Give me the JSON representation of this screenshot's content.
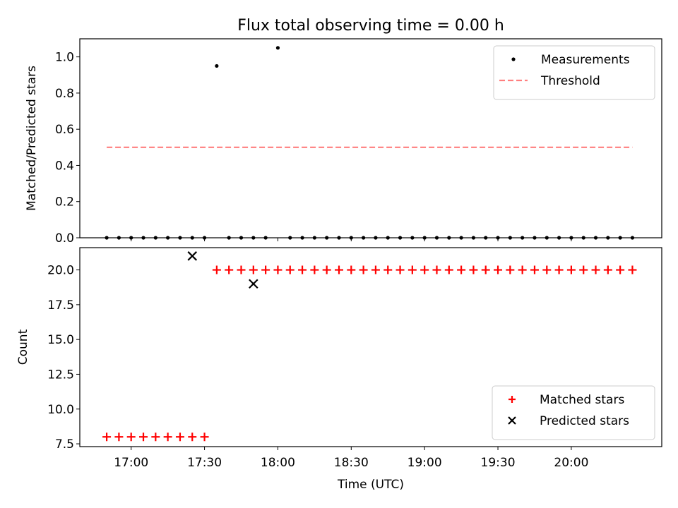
{
  "figure": {
    "title": "Flux total observing time = 0.00 h",
    "xlabel": "Time (UTC)"
  },
  "chart_data": [
    {
      "type": "scatter",
      "ylabel": "Matched/Predicted stars",
      "ylim": [
        0,
        1.1
      ],
      "yticks": [
        0.0,
        0.2,
        0.4,
        0.6,
        0.8,
        1.0
      ],
      "yticks_text": [
        "0.0",
        "0.2",
        "0.4",
        "0.6",
        "0.8",
        "1.0"
      ],
      "xlim": [
        "16:39",
        "20:37"
      ],
      "xticks": [
        "17:00",
        "17:30",
        "18:00",
        "18:30",
        "19:00",
        "19:30",
        "20:00"
      ],
      "legend": {
        "position": "upper-right",
        "entries": [
          "Measurements",
          "Threshold"
        ]
      },
      "series": [
        {
          "name": "Measurements",
          "marker": "dot",
          "color": "#000000",
          "x": [
            "16:50",
            "16:55",
            "17:00",
            "17:05",
            "17:10",
            "17:15",
            "17:20",
            "17:25",
            "17:30",
            "17:35",
            "17:40",
            "17:45",
            "17:50",
            "17:55",
            "18:00",
            "18:05",
            "18:10",
            "18:15",
            "18:20",
            "18:25",
            "18:30",
            "18:35",
            "18:40",
            "18:45",
            "18:50",
            "18:55",
            "19:00",
            "19:05",
            "19:10",
            "19:15",
            "19:20",
            "19:25",
            "19:30",
            "19:35",
            "19:40",
            "19:45",
            "19:50",
            "19:55",
            "20:00",
            "20:05",
            "20:10",
            "20:15",
            "20:20",
            "20:25"
          ],
          "y": [
            0,
            0,
            0,
            0,
            0,
            0,
            0,
            0,
            0,
            0.95,
            0,
            0,
            0,
            0,
            1.05,
            0,
            0,
            0,
            0,
            0,
            0,
            0,
            0,
            0,
            0,
            0,
            0,
            0,
            0,
            0,
            0,
            0,
            0,
            0,
            0,
            0,
            0,
            0,
            0,
            0,
            0,
            0,
            0,
            0
          ]
        },
        {
          "name": "Threshold",
          "style": "dashed",
          "color": "#ff7f7f",
          "x": [
            "16:50",
            "20:25"
          ],
          "y": [
            0.5,
            0.5
          ]
        }
      ]
    },
    {
      "type": "scatter",
      "ylabel": "Count",
      "ylim": [
        7.3,
        21.6
      ],
      "yticks": [
        7.5,
        10.0,
        12.5,
        15.0,
        17.5,
        20.0
      ],
      "yticks_text": [
        "7.5",
        "10.0",
        "12.5",
        "15.0",
        "17.5",
        "20.0"
      ],
      "xlim": [
        "16:39",
        "20:37"
      ],
      "xticks": [
        "17:00",
        "17:30",
        "18:00",
        "18:30",
        "19:00",
        "19:30",
        "20:00"
      ],
      "legend": {
        "position": "lower-right",
        "entries": [
          "Matched stars",
          "Predicted stars"
        ]
      },
      "series": [
        {
          "name": "Matched stars",
          "marker": "plus",
          "color": "#ff0000",
          "x": [
            "16:50",
            "16:55",
            "17:00",
            "17:05",
            "17:10",
            "17:15",
            "17:20",
            "17:25",
            "17:30",
            "17:35",
            "17:40",
            "17:45",
            "17:50",
            "17:55",
            "18:00",
            "18:05",
            "18:10",
            "18:15",
            "18:20",
            "18:25",
            "18:30",
            "18:35",
            "18:40",
            "18:45",
            "18:50",
            "18:55",
            "19:00",
            "19:05",
            "19:10",
            "19:15",
            "19:20",
            "19:25",
            "19:30",
            "19:35",
            "19:40",
            "19:45",
            "19:50",
            "19:55",
            "20:00",
            "20:05",
            "20:10",
            "20:15",
            "20:20",
            "20:25"
          ],
          "y": [
            8,
            8,
            8,
            8,
            8,
            8,
            8,
            8,
            8,
            20,
            20,
            20,
            20,
            20,
            20,
            20,
            20,
            20,
            20,
            20,
            20,
            20,
            20,
            20,
            20,
            20,
            20,
            20,
            20,
            20,
            20,
            20,
            20,
            20,
            20,
            20,
            20,
            20,
            20,
            20,
            20,
            20,
            20,
            20
          ]
        },
        {
          "name": "Predicted stars",
          "marker": "x",
          "color": "#000000",
          "x": [
            "17:25",
            "17:50"
          ],
          "y": [
            21,
            19
          ]
        }
      ]
    }
  ]
}
